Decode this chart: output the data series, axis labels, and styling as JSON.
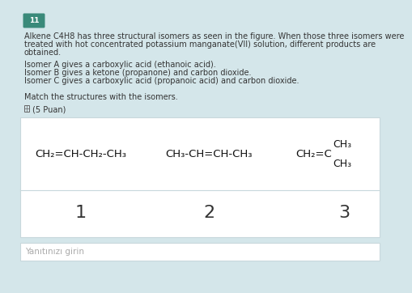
{
  "bg_color": "#d4e6ea",
  "number_box_color": "#3a8a7a",
  "number_box_text": "11",
  "title_line1": "Alkene C4H8 has three structural isomers as seen in the figure. When those three isomers were",
  "title_line2": "treated with hot concentrated potassium manganate(VII) solution, different products are",
  "title_line3": "obtained.",
  "isomer_lines": [
    "Isomer A gives a carboxylic acid (ethanoic acid).",
    "Isomer B gives a ketone (propanone) and carbon dioxide.",
    "Isomer C gives a carboxylic acid (propanoic acid) and carbon dioxide."
  ],
  "match_text": "Match the structures with the isomers.",
  "puan_text": "(5 Puan)",
  "formula1": "CH₂=CH-CH₂-CH₃",
  "formula2": "CH₃-CH=CH-CH₃",
  "formula3_main": "CH₂=C",
  "formula3_ch3_top": "CH₃",
  "formula3_ch3_bot": "CH₃",
  "num1": "1",
  "num2": "2",
  "num3": "3",
  "answer_placeholder": "Yanıtınızı girin",
  "text_color": "#333333",
  "formula_color": "#111111",
  "formula_fontsize": 9.5,
  "body_fontsize": 7.0,
  "number_fontsize": 16,
  "panel_edge_color": "#c8d8dc",
  "answer_box_color": "#f5f5f5"
}
